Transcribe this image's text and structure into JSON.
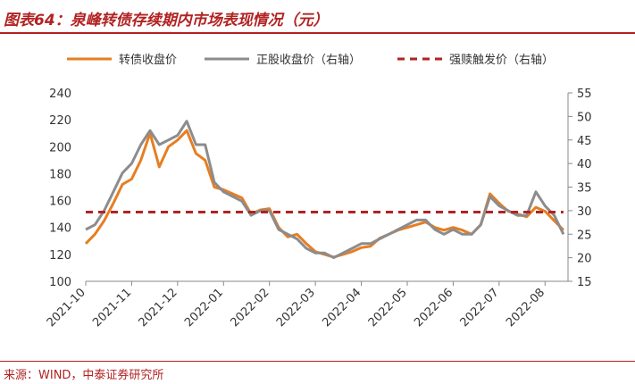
{
  "title": "图表64：泉峰转债存续期内市场表现情况（元）",
  "source": "来源：WIND，中泰证券研究所",
  "colors": {
    "convertible": "#e67e22",
    "stock": "#8c8c8c",
    "trigger": "#b22222",
    "accent": "#b22222"
  },
  "chart_data": {
    "type": "line",
    "x_ticks": [
      "2021-10",
      "2021-11",
      "2021-12",
      "2022-01",
      "2022-02",
      "2022-03",
      "2022-04",
      "2022-05",
      "2022-06",
      "2022-07",
      "2022-08"
    ],
    "x_range": [
      0,
      10.5
    ],
    "y_left": {
      "range": [
        100,
        240
      ],
      "ticks": [
        "100",
        "120",
        "140",
        "160",
        "180",
        "200",
        "220",
        "240"
      ]
    },
    "y_right": {
      "range": [
        15,
        55
      ],
      "ticks": [
        "15",
        "20",
        "25",
        "30",
        "35",
        "40",
        "45",
        "50",
        "55"
      ]
    },
    "legend": [
      "转债收盘价",
      "正股收盘价（右轴）",
      "强赎触发价（右轴）"
    ],
    "series": [
      {
        "name": "转债收盘价",
        "axis": "left",
        "x": [
          0,
          0.2,
          0.4,
          0.6,
          0.8,
          1.0,
          1.2,
          1.4,
          1.6,
          1.8,
          2.0,
          2.2,
          2.4,
          2.6,
          2.8,
          3.0,
          3.2,
          3.4,
          3.6,
          3.8,
          4.0,
          4.2,
          4.4,
          4.6,
          4.8,
          5.0,
          5.2,
          5.4,
          5.6,
          5.8,
          6.0,
          6.2,
          6.4,
          6.6,
          6.8,
          7.0,
          7.2,
          7.4,
          7.6,
          7.8,
          8.0,
          8.2,
          8.4,
          8.6,
          8.8,
          9.0,
          9.2,
          9.4,
          9.6,
          9.8,
          10.0,
          10.2,
          10.4
        ],
        "y": [
          128,
          135,
          145,
          158,
          172,
          176,
          190,
          210,
          185,
          200,
          205,
          212,
          195,
          190,
          170,
          168,
          165,
          162,
          150,
          153,
          154,
          140,
          133,
          135,
          128,
          122,
          120,
          118,
          120,
          122,
          125,
          126,
          132,
          135,
          138,
          140,
          142,
          144,
          140,
          138,
          140,
          138,
          135,
          142,
          165,
          158,
          152,
          150,
          148,
          155,
          152,
          145,
          138
        ]
      },
      {
        "name": "正股收盘价（右轴）",
        "axis": "right",
        "x": [
          0,
          0.2,
          0.4,
          0.6,
          0.8,
          1.0,
          1.2,
          1.4,
          1.6,
          1.8,
          2.0,
          2.2,
          2.4,
          2.6,
          2.8,
          3.0,
          3.2,
          3.4,
          3.6,
          3.8,
          4.0,
          4.2,
          4.4,
          4.6,
          4.8,
          5.0,
          5.2,
          5.4,
          5.6,
          5.8,
          6.0,
          6.2,
          6.4,
          6.6,
          6.8,
          7.0,
          7.2,
          7.4,
          7.6,
          7.8,
          8.0,
          8.2,
          8.4,
          8.6,
          8.8,
          9.0,
          9.2,
          9.4,
          9.6,
          9.8,
          10.0,
          10.2,
          10.4
        ],
        "y": [
          26,
          27,
          30,
          34,
          38,
          40,
          44,
          47,
          44,
          45,
          46,
          49,
          44,
          44,
          36,
          34,
          33,
          32,
          29,
          30,
          30,
          26,
          25,
          24,
          22,
          21,
          21,
          20,
          21,
          22,
          23,
          23,
          24,
          25,
          26,
          27,
          28,
          28,
          26,
          25,
          26,
          25,
          25,
          27,
          33,
          31,
          30,
          29,
          29,
          34,
          31,
          29,
          25
        ]
      },
      {
        "name": "强赎触发价（右轴）",
        "axis": "right",
        "x": [
          0,
          10.4
        ],
        "y": [
          29.7,
          29.7
        ]
      }
    ]
  }
}
